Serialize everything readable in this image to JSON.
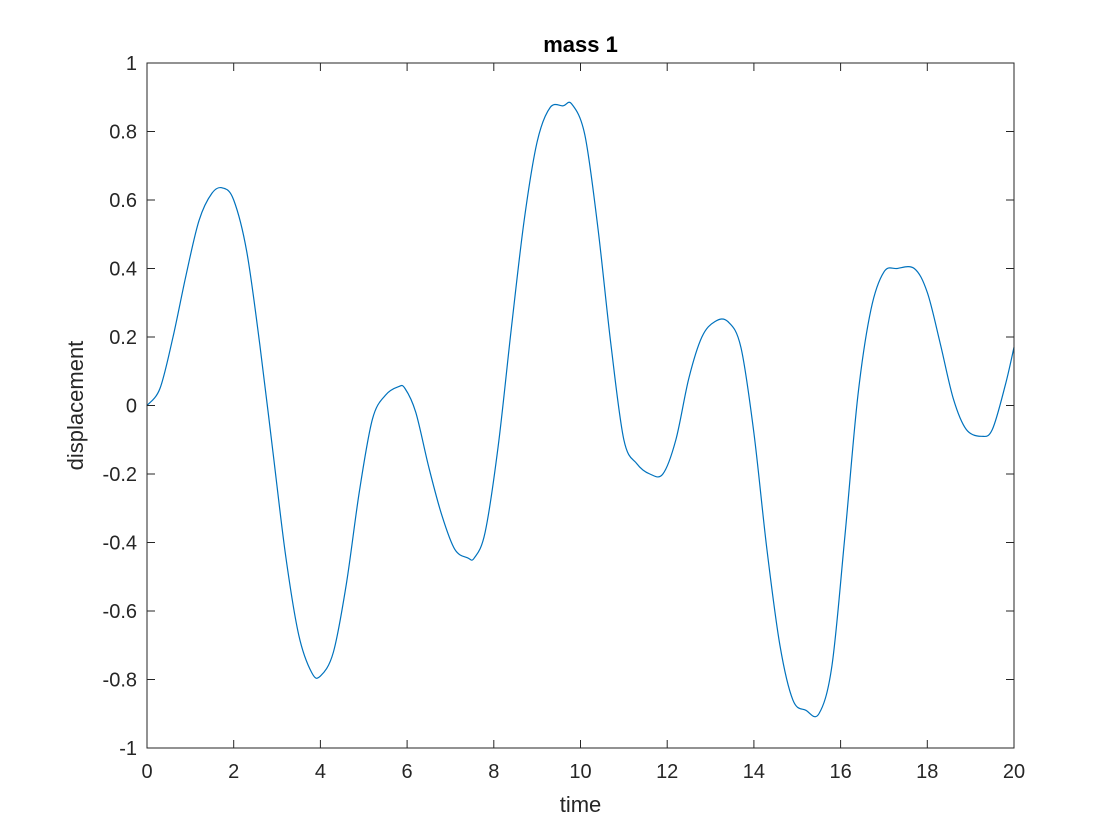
{
  "chart_data": {
    "type": "line",
    "title": "mass 1",
    "xlabel": "time",
    "ylabel": "displacement",
    "xlim": [
      0,
      20
    ],
    "ylim": [
      -1,
      1
    ],
    "xticks": [
      0,
      2,
      4,
      6,
      8,
      10,
      12,
      14,
      16,
      18,
      20
    ],
    "yticks": [
      -1,
      -0.8,
      -0.6,
      -0.4,
      -0.2,
      0,
      0.2,
      0.4,
      0.6,
      0.8,
      1
    ],
    "xtick_labels": [
      "0",
      "2",
      "4",
      "6",
      "8",
      "10",
      "12",
      "14",
      "16",
      "18",
      "20"
    ],
    "ytick_labels": [
      "-1",
      "-0.8",
      "-0.6",
      "-0.4",
      "-0.2",
      "0",
      "0.2",
      "0.4",
      "0.6",
      "0.8",
      "1"
    ],
    "grid": false,
    "line_color": "#0072BD",
    "series": [
      {
        "x": [
          0,
          0.3,
          0.6,
          0.9,
          1.2,
          1.5,
          1.75,
          2.0,
          2.3,
          2.6,
          2.9,
          3.2,
          3.5,
          3.8,
          4.0,
          4.3,
          4.6,
          4.9,
          5.2,
          5.5,
          5.8,
          5.95,
          6.2,
          6.5,
          6.8,
          7.1,
          7.4,
          7.55,
          7.8,
          8.1,
          8.4,
          8.7,
          9.0,
          9.3,
          9.6,
          9.8,
          10.1,
          10.4,
          10.7,
          11.0,
          11.3,
          11.6,
          11.9,
          12.2,
          12.5,
          12.8,
          13.1,
          13.4,
          13.7,
          14.0,
          14.3,
          14.6,
          14.9,
          15.2,
          15.5,
          15.8,
          16.1,
          16.4,
          16.7,
          17.0,
          17.3,
          17.7,
          18.0,
          18.3,
          18.6,
          18.9,
          19.25,
          19.5,
          19.8,
          20.0
        ],
        "y": [
          0.0,
          0.05,
          0.2,
          0.38,
          0.54,
          0.62,
          0.635,
          0.6,
          0.45,
          0.18,
          -0.13,
          -0.44,
          -0.67,
          -0.78,
          -0.79,
          -0.72,
          -0.52,
          -0.25,
          -0.04,
          0.03,
          0.055,
          0.05,
          -0.02,
          -0.18,
          -0.32,
          -0.42,
          -0.445,
          -0.445,
          -0.37,
          -0.12,
          0.22,
          0.54,
          0.77,
          0.87,
          0.875,
          0.88,
          0.79,
          0.52,
          0.18,
          -0.1,
          -0.17,
          -0.2,
          -0.2,
          -0.1,
          0.08,
          0.2,
          0.245,
          0.245,
          0.17,
          -0.08,
          -0.42,
          -0.7,
          -0.86,
          -0.89,
          -0.9,
          -0.76,
          -0.38,
          0.03,
          0.28,
          0.39,
          0.4,
          0.4,
          0.33,
          0.18,
          0.02,
          -0.07,
          -0.09,
          -0.07,
          0.06,
          0.17
        ]
      }
    ]
  }
}
